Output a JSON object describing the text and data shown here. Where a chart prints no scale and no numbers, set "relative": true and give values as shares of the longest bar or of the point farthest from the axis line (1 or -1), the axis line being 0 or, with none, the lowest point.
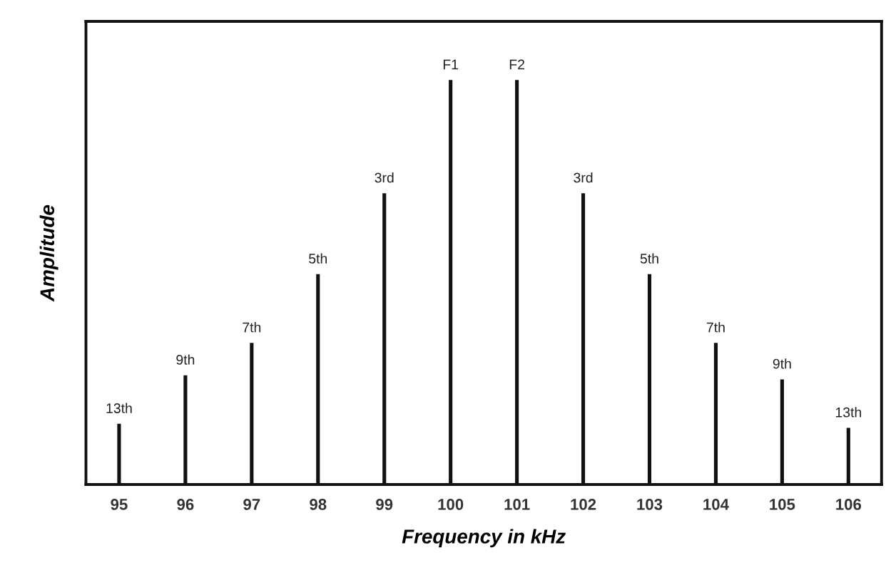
{
  "chart_data": {
    "type": "bar",
    "relative": true,
    "xlabel": "Frequency in kHz",
    "ylabel": "Amplitude",
    "x": [
      95,
      96,
      97,
      98,
      99,
      100,
      101,
      102,
      103,
      104,
      105,
      106
    ],
    "values": [
      0.15,
      0.27,
      0.35,
      0.52,
      0.72,
      1,
      1,
      0.72,
      0.52,
      0.35,
      0.26,
      0.14
    ],
    "color": "#111111",
    "xlim": [
      94.5,
      106.5
    ],
    "xticks": [
      95,
      96,
      97,
      98,
      99,
      100,
      101,
      102,
      103,
      104,
      105,
      106
    ],
    "tick_labels": "x",
    "annotations": [
      {
        "text": "13th",
        "x": 95,
        "y": 0.15
      },
      {
        "text": "9th",
        "x": 96,
        "y": 0.27
      },
      {
        "text": "7th",
        "x": 97,
        "y": 0.35
      },
      {
        "text": "5th",
        "x": 98,
        "y": 0.52
      },
      {
        "text": "3rd",
        "x": 99,
        "y": 0.72
      },
      {
        "text": "F1",
        "x": 100,
        "y": 1
      },
      {
        "text": "F2",
        "x": 101,
        "y": 1
      },
      {
        "text": "3rd",
        "x": 102,
        "y": 0.72
      },
      {
        "text": "5th",
        "x": 103,
        "y": 0.52
      },
      {
        "text": "7th",
        "x": 104,
        "y": 0.35
      },
      {
        "text": "9th",
        "x": 105,
        "y": 0.26
      },
      {
        "text": "13th",
        "x": 106,
        "y": 0.14
      }
    ]
  }
}
